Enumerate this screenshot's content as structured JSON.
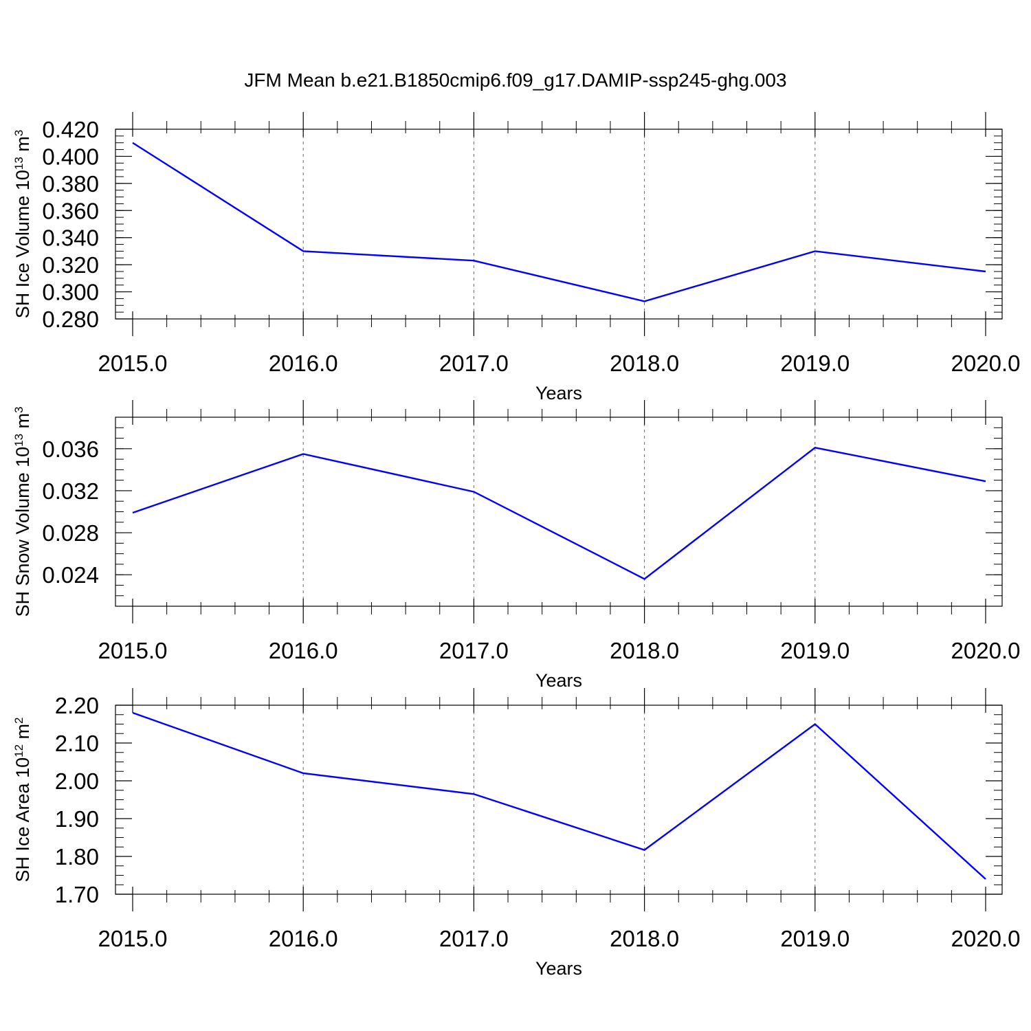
{
  "title": "JFM Mean b.e21.B1850cmip6.f09_g17.DAMIP-ssp245-ghg.003",
  "colors": {
    "series": "#0000ff",
    "axis": "#000000",
    "grid": "#666666",
    "background": "#ffffff"
  },
  "chart_data": [
    {
      "type": "line",
      "title": "",
      "xlabel": "Years",
      "ylabel": "SH Ice Volume",
      "ylabel_unit": {
        "base": "10",
        "exp": "13",
        "unit": "m",
        "unit_exp": "3"
      },
      "x": [
        2015,
        2016,
        2017,
        2018,
        2019,
        2020
      ],
      "xlim": [
        2015,
        2020
      ],
      "x_ticks": [
        2015,
        2016,
        2017,
        2018,
        2019,
        2020
      ],
      "x_tick_labels": [
        "2015.0",
        "2016.0",
        "2017.0",
        "2018.0",
        "2019.0",
        "2020.0"
      ],
      "ylim": [
        0.28,
        0.42
      ],
      "y_ticks": [
        0.28,
        0.3,
        0.32,
        0.34,
        0.36,
        0.38,
        0.4,
        0.42
      ],
      "y_tick_labels": [
        "0.280",
        "0.300",
        "0.320",
        "0.340",
        "0.360",
        "0.380",
        "0.400",
        "0.420"
      ],
      "series": [
        {
          "values": [
            0.41,
            0.33,
            0.323,
            0.293,
            0.33,
            0.315
          ]
        }
      ],
      "grid": "vertical dashed at major x ticks",
      "legend": "none"
    },
    {
      "type": "line",
      "title": "",
      "xlabel": "Years",
      "ylabel": "SH Snow Volume",
      "ylabel_unit": {
        "base": "10",
        "exp": "13",
        "unit": "m",
        "unit_exp": "3"
      },
      "x": [
        2015,
        2016,
        2017,
        2018,
        2019,
        2020
      ],
      "xlim": [
        2015,
        2020
      ],
      "x_ticks": [
        2015,
        2016,
        2017,
        2018,
        2019,
        2020
      ],
      "x_tick_labels": [
        "2015.0",
        "2016.0",
        "2017.0",
        "2018.0",
        "2019.0",
        "2020.0"
      ],
      "ylim": [
        0.021,
        0.039
      ],
      "y_ticks": [
        0.024,
        0.028,
        0.032,
        0.036
      ],
      "y_tick_labels": [
        "0.024",
        "0.028",
        "0.032",
        "0.036"
      ],
      "series": [
        {
          "values": [
            0.0299,
            0.0355,
            0.0319,
            0.0236,
            0.0361,
            0.0329
          ]
        }
      ],
      "grid": "vertical dashed at major x ticks",
      "legend": "none"
    },
    {
      "type": "line",
      "title": "",
      "xlabel": "Years",
      "ylabel": "SH Ice Area",
      "ylabel_unit": {
        "base": "10",
        "exp": "12",
        "unit": "m",
        "unit_exp": "2"
      },
      "x": [
        2015,
        2016,
        2017,
        2018,
        2019,
        2020
      ],
      "xlim": [
        2015,
        2020
      ],
      "x_ticks": [
        2015,
        2016,
        2017,
        2018,
        2019,
        2020
      ],
      "x_tick_labels": [
        "2015.0",
        "2016.0",
        "2017.0",
        "2018.0",
        "2019.0",
        "2020.0"
      ],
      "ylim": [
        1.7,
        2.2
      ],
      "y_ticks": [
        1.7,
        1.8,
        1.9,
        2.0,
        2.1,
        2.2
      ],
      "y_tick_labels": [
        "1.70",
        "1.80",
        "1.90",
        "2.00",
        "2.10",
        "2.20"
      ],
      "series": [
        {
          "values": [
            2.18,
            2.02,
            1.965,
            1.817,
            2.15,
            1.74
          ]
        }
      ],
      "grid": "vertical dashed at major x ticks",
      "legend": "none"
    }
  ]
}
